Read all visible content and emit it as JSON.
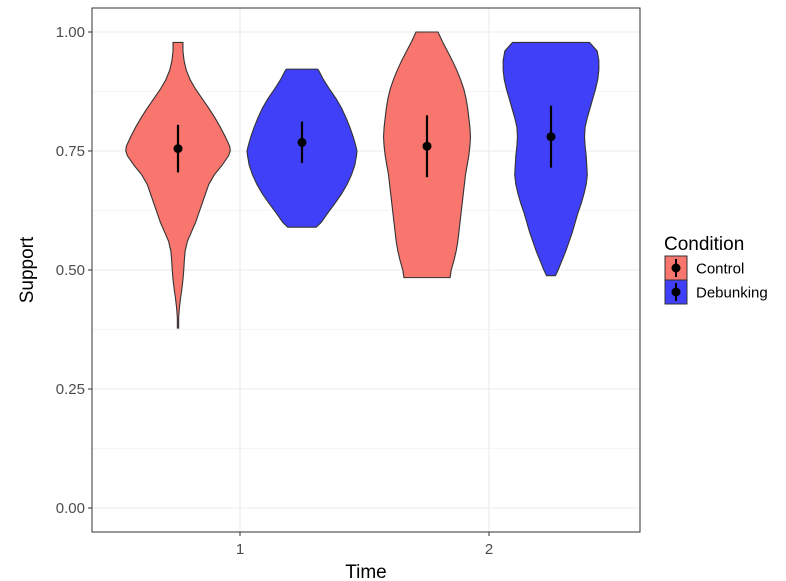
{
  "chart_data": {
    "type": "violin",
    "xlabel": "Time",
    "ylabel": "Support",
    "ylim": [
      0,
      1
    ],
    "yticks": [
      "0.00",
      "0.25",
      "0.50",
      "0.75",
      "1.00"
    ],
    "categories": [
      "1",
      "2"
    ],
    "grid": true,
    "legend": {
      "title": "Condition",
      "position": "right"
    },
    "series": [
      {
        "name": "Control",
        "color": "#F8766D",
        "groups": [
          {
            "category": "1",
            "mean": 0.755,
            "ci": [
              0.705,
              0.805
            ],
            "density": [
              [
                0.378,
                0.012
              ],
              [
                0.4,
                0.012
              ],
              [
                0.42,
                0.025
              ],
              [
                0.44,
                0.045
              ],
              [
                0.46,
                0.07
              ],
              [
                0.48,
                0.09
              ],
              [
                0.5,
                0.105
              ],
              [
                0.52,
                0.115
              ],
              [
                0.54,
                0.13
              ],
              [
                0.56,
                0.17
              ],
              [
                0.58,
                0.245
              ],
              [
                0.6,
                0.32
              ],
              [
                0.62,
                0.38
              ],
              [
                0.64,
                0.44
              ],
              [
                0.66,
                0.5
              ],
              [
                0.68,
                0.56
              ],
              [
                0.7,
                0.66
              ],
              [
                0.72,
                0.8
              ],
              [
                0.74,
                0.92
              ],
              [
                0.75,
                0.95
              ],
              [
                0.76,
                0.94
              ],
              [
                0.78,
                0.86
              ],
              [
                0.8,
                0.77
              ],
              [
                0.82,
                0.67
              ],
              [
                0.84,
                0.56
              ],
              [
                0.86,
                0.44
              ],
              [
                0.88,
                0.32
              ],
              [
                0.9,
                0.22
              ],
              [
                0.92,
                0.15
              ],
              [
                0.94,
                0.11
              ],
              [
                0.96,
                0.09
              ],
              [
                0.978,
                0.09
              ]
            ]
          },
          {
            "category": "2",
            "mean": 0.76,
            "ci": [
              0.695,
              0.825
            ],
            "density": [
              [
                0.484,
                0.42
              ],
              [
                0.5,
                0.44
              ],
              [
                0.52,
                0.49
              ],
              [
                0.54,
                0.53
              ],
              [
                0.56,
                0.56
              ],
              [
                0.58,
                0.58
              ],
              [
                0.6,
                0.6
              ],
              [
                0.62,
                0.62
              ],
              [
                0.64,
                0.64
              ],
              [
                0.66,
                0.66
              ],
              [
                0.68,
                0.68
              ],
              [
                0.7,
                0.7
              ],
              [
                0.72,
                0.73
              ],
              [
                0.74,
                0.76
              ],
              [
                0.76,
                0.78
              ],
              [
                0.78,
                0.79
              ],
              [
                0.8,
                0.78
              ],
              [
                0.82,
                0.76
              ],
              [
                0.84,
                0.74
              ],
              [
                0.86,
                0.71
              ],
              [
                0.88,
                0.67
              ],
              [
                0.9,
                0.61
              ],
              [
                0.92,
                0.54
              ],
              [
                0.94,
                0.46
              ],
              [
                0.96,
                0.37
              ],
              [
                0.98,
                0.28
              ],
              [
                1.0,
                0.2
              ]
            ]
          }
        ]
      },
      {
        "name": "Debunking",
        "color": "#4040F8",
        "groups": [
          {
            "category": "1",
            "mean": 0.768,
            "ci": [
              0.725,
              0.812
            ],
            "density": [
              [
                0.59,
                0.26
              ],
              [
                0.6,
                0.35
              ],
              [
                0.62,
                0.47
              ],
              [
                0.64,
                0.6
              ],
              [
                0.66,
                0.72
              ],
              [
                0.68,
                0.82
              ],
              [
                0.7,
                0.9
              ],
              [
                0.72,
                0.96
              ],
              [
                0.74,
                0.99
              ],
              [
                0.75,
                1.0
              ],
              [
                0.76,
                0.98
              ],
              [
                0.78,
                0.93
              ],
              [
                0.8,
                0.87
              ],
              [
                0.82,
                0.8
              ],
              [
                0.84,
                0.72
              ],
              [
                0.86,
                0.62
              ],
              [
                0.88,
                0.5
              ],
              [
                0.9,
                0.39
              ],
              [
                0.92,
                0.3
              ],
              [
                0.922,
                0.28
              ]
            ]
          },
          {
            "category": "2",
            "mean": 0.78,
            "ci": [
              0.715,
              0.845
            ],
            "density": [
              [
                0.488,
                0.08
              ],
              [
                0.5,
                0.13
              ],
              [
                0.52,
                0.2
              ],
              [
                0.54,
                0.27
              ],
              [
                0.56,
                0.33
              ],
              [
                0.58,
                0.39
              ],
              [
                0.6,
                0.44
              ],
              [
                0.62,
                0.49
              ],
              [
                0.64,
                0.55
              ],
              [
                0.66,
                0.6
              ],
              [
                0.68,
                0.64
              ],
              [
                0.7,
                0.66
              ],
              [
                0.72,
                0.65
              ],
              [
                0.74,
                0.64
              ],
              [
                0.76,
                0.62
              ],
              [
                0.78,
                0.61
              ],
              [
                0.8,
                0.62
              ],
              [
                0.82,
                0.66
              ],
              [
                0.84,
                0.71
              ],
              [
                0.86,
                0.76
              ],
              [
                0.88,
                0.81
              ],
              [
                0.9,
                0.85
              ],
              [
                0.92,
                0.87
              ],
              [
                0.94,
                0.87
              ],
              [
                0.96,
                0.84
              ],
              [
                0.978,
                0.7
              ]
            ]
          }
        ]
      }
    ]
  }
}
